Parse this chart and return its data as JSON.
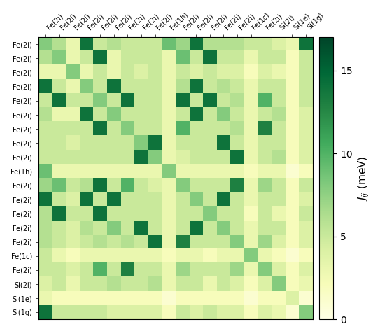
{
  "labels": [
    "Fe(2i)",
    "Fe(2i)",
    "Fe(2i)",
    "Fe(2i)",
    "Fe(2i)",
    "Fe(2i)",
    "Fe(2i)",
    "Fe(2i)",
    "Fe(2i)",
    "Fe(1h)",
    "Fe(2i)",
    "Fe(2i)",
    "Fe(2i)",
    "Fe(2i)",
    "Fe(2i)",
    "Fe(1c)",
    "Fe(2i)",
    "Si(2i)",
    "Si(1e)",
    "Si(1g)"
  ],
  "matrix": [
    [
      8,
      6,
      3,
      14,
      5,
      6,
      5,
      5,
      5,
      9,
      7,
      14,
      6,
      6,
      6,
      5,
      5,
      4,
      3,
      14
    ],
    [
      6,
      8,
      3,
      5,
      14,
      3,
      5,
      5,
      5,
      3,
      9,
      5,
      14,
      5,
      5,
      3,
      5,
      5,
      2,
      5
    ],
    [
      3,
      3,
      8,
      3,
      5,
      3,
      5,
      4,
      5,
      3,
      5,
      4,
      5,
      4,
      4,
      2,
      4,
      3,
      2,
      5
    ],
    [
      14,
      5,
      3,
      8,
      5,
      14,
      5,
      5,
      5,
      3,
      6,
      14,
      5,
      6,
      5,
      3,
      5,
      5,
      2,
      5
    ],
    [
      5,
      14,
      5,
      5,
      8,
      5,
      14,
      5,
      5,
      3,
      14,
      5,
      14,
      5,
      6,
      3,
      10,
      5,
      2,
      5
    ],
    [
      6,
      3,
      3,
      14,
      5,
      8,
      5,
      5,
      5,
      3,
      5,
      14,
      5,
      8,
      5,
      3,
      5,
      6,
      2,
      4
    ],
    [
      5,
      5,
      5,
      5,
      14,
      5,
      8,
      5,
      5,
      3,
      10,
      5,
      5,
      5,
      6,
      3,
      13,
      5,
      2,
      4
    ],
    [
      5,
      5,
      4,
      5,
      5,
      5,
      5,
      8,
      14,
      3,
      5,
      5,
      5,
      14,
      5,
      3,
      5,
      5,
      2,
      4
    ],
    [
      5,
      5,
      5,
      5,
      5,
      5,
      5,
      14,
      8,
      3,
      4,
      5,
      5,
      5,
      14,
      3,
      5,
      6,
      2,
      4
    ],
    [
      9,
      3,
      3,
      3,
      3,
      3,
      3,
      3,
      3,
      8,
      3,
      3,
      3,
      3,
      3,
      2,
      3,
      3,
      1,
      2
    ],
    [
      7,
      9,
      5,
      6,
      14,
      5,
      10,
      5,
      4,
      3,
      8,
      5,
      5,
      5,
      13,
      3,
      7,
      5,
      2,
      5
    ],
    [
      14,
      5,
      4,
      14,
      5,
      14,
      5,
      5,
      5,
      3,
      5,
      8,
      5,
      14,
      5,
      3,
      5,
      5,
      2,
      4
    ],
    [
      6,
      14,
      5,
      5,
      14,
      5,
      5,
      5,
      5,
      3,
      5,
      5,
      8,
      5,
      5,
      2,
      5,
      3,
      2,
      5
    ],
    [
      6,
      5,
      4,
      6,
      5,
      8,
      5,
      14,
      5,
      3,
      5,
      14,
      5,
      8,
      5,
      3,
      5,
      5,
      2,
      4
    ],
    [
      6,
      5,
      4,
      5,
      6,
      5,
      6,
      5,
      14,
      3,
      13,
      5,
      5,
      5,
      8,
      3,
      7,
      4,
      2,
      4
    ],
    [
      5,
      3,
      2,
      3,
      3,
      3,
      3,
      3,
      3,
      2,
      3,
      3,
      2,
      3,
      3,
      8,
      3,
      2,
      1,
      2
    ],
    [
      5,
      5,
      4,
      5,
      10,
      5,
      13,
      5,
      5,
      3,
      7,
      5,
      5,
      5,
      7,
      3,
      8,
      4,
      2,
      4
    ],
    [
      4,
      5,
      3,
      5,
      5,
      6,
      5,
      5,
      6,
      3,
      5,
      5,
      3,
      5,
      4,
      2,
      4,
      8,
      2,
      3
    ],
    [
      3,
      2,
      2,
      2,
      2,
      2,
      2,
      2,
      2,
      1,
      2,
      2,
      2,
      2,
      2,
      1,
      2,
      2,
      4,
      1
    ],
    [
      14,
      5,
      5,
      5,
      5,
      4,
      4,
      4,
      4,
      2,
      5,
      4,
      5,
      4,
      4,
      2,
      4,
      3,
      1,
      8
    ]
  ],
  "vmin": 0,
  "vmax": 17,
  "cbar_label": "$J_{ij}$ (meV)",
  "colormap": "YlGn",
  "tick_labels_fontsize": 7,
  "cbar_fontsize": 11,
  "cbar_ticks": [
    0,
    5,
    10,
    15
  ]
}
